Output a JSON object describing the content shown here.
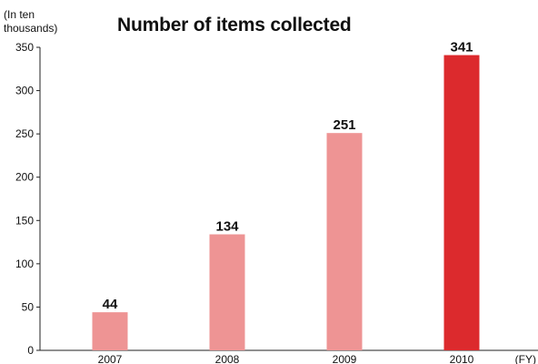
{
  "chart_data": {
    "type": "bar",
    "title": "Number of items collected",
    "ylabel_line1": "(In ten",
    "ylabel_line2": "thousands)",
    "xlabel": "(FY)",
    "categories": [
      "2007",
      "2008",
      "2009",
      "2010"
    ],
    "values": [
      44,
      134,
      251,
      341
    ],
    "data_labels": [
      "44",
      "134",
      "251",
      "341"
    ],
    "ylim": [
      0,
      350
    ],
    "yticks": [
      0,
      50,
      100,
      150,
      200,
      250,
      300,
      350
    ],
    "grid": false,
    "colors": [
      "#ee9494",
      "#ee9494",
      "#ee9494",
      "#dc2a2d"
    ]
  }
}
